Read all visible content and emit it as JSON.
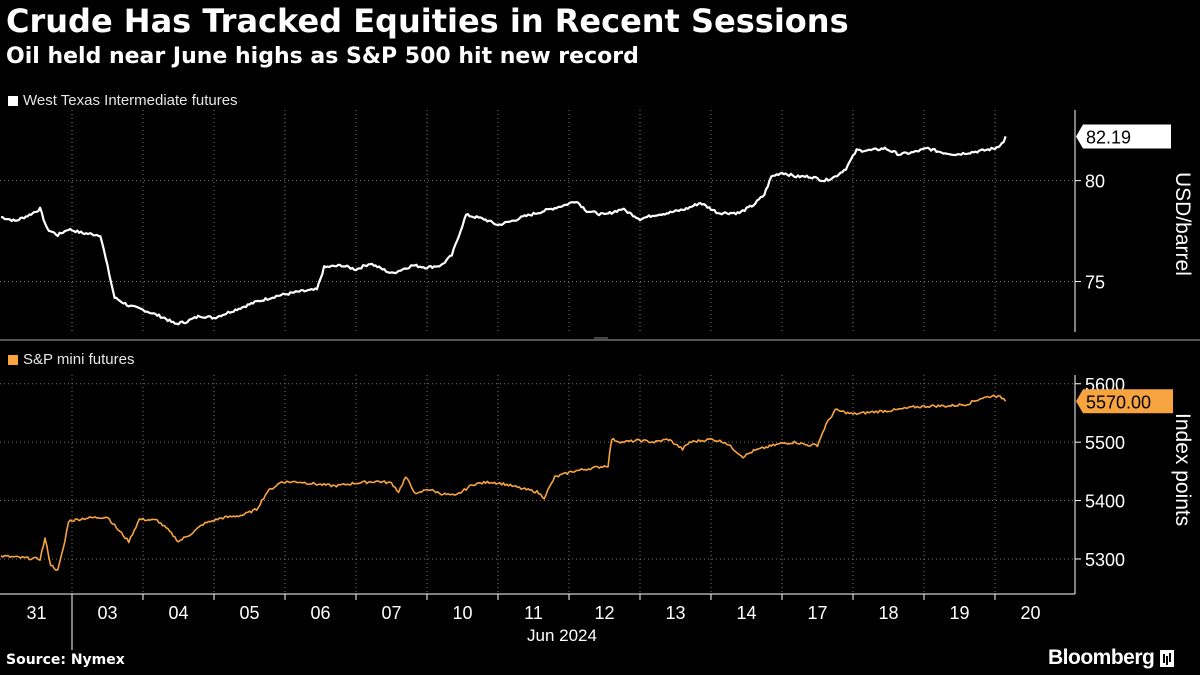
{
  "header": {
    "title": "Crude Has Tracked Equities in Recent Sessions",
    "subtitle": "Oil held near June highs as S&P 500 hit new record"
  },
  "footer": {
    "source": "Source: Nymex",
    "brand": "Bloomberg"
  },
  "colors": {
    "oil": "#ffffff",
    "spx": "#f7a340",
    "grid": "#7a7a7a",
    "background": "#000000"
  },
  "chart_data": [
    {
      "type": "line",
      "name": "oil-panel",
      "legend": "West Texas Intermediate futures",
      "ylabel": "USD/barrel",
      "yticks": [
        75,
        80
      ],
      "ylim": [
        72.5,
        83.5
      ],
      "last_value_label": "82.19",
      "series": [
        {
          "name": "West Texas Intermediate futures",
          "points": [
            [
              0.0,
              78.2
            ],
            [
              0.2,
              78.0
            ],
            [
              0.4,
              78.3
            ],
            [
              0.55,
              78.6
            ],
            [
              0.65,
              77.6
            ],
            [
              0.8,
              77.3
            ],
            [
              0.95,
              77.6
            ],
            [
              1.15,
              77.4
            ],
            [
              1.4,
              77.3
            ],
            [
              1.6,
              74.2
            ],
            [
              1.8,
              73.8
            ],
            [
              2.0,
              73.6
            ],
            [
              2.3,
              73.2
            ],
            [
              2.45,
              72.9
            ],
            [
              2.6,
              73.0
            ],
            [
              2.8,
              73.3
            ],
            [
              3.0,
              73.2
            ],
            [
              3.3,
              73.6
            ],
            [
              3.6,
              74.0
            ],
            [
              3.9,
              74.3
            ],
            [
              4.2,
              74.5
            ],
            [
              4.45,
              74.6
            ],
            [
              4.55,
              75.7
            ],
            [
              4.8,
              75.8
            ],
            [
              5.0,
              75.6
            ],
            [
              5.2,
              75.9
            ],
            [
              5.5,
              75.4
            ],
            [
              5.8,
              75.8
            ],
            [
              6.0,
              75.7
            ],
            [
              6.2,
              75.8
            ],
            [
              6.35,
              76.3
            ],
            [
              6.55,
              78.3
            ],
            [
              6.8,
              78.1
            ],
            [
              7.0,
              77.8
            ],
            [
              7.2,
              78.0
            ],
            [
              7.35,
              78.2
            ],
            [
              7.55,
              78.4
            ],
            [
              7.75,
              78.6
            ],
            [
              7.95,
              78.8
            ],
            [
              8.1,
              79.0
            ],
            [
              8.25,
              78.5
            ],
            [
              8.5,
              78.3
            ],
            [
              8.75,
              78.6
            ],
            [
              9.0,
              78.1
            ],
            [
              9.2,
              78.3
            ],
            [
              9.4,
              78.4
            ],
            [
              9.65,
              78.6
            ],
            [
              9.85,
              78.9
            ],
            [
              10.1,
              78.4
            ],
            [
              10.4,
              78.4
            ],
            [
              10.6,
              78.8
            ],
            [
              10.75,
              79.3
            ],
            [
              10.85,
              80.2
            ],
            [
              11.0,
              80.4
            ],
            [
              11.2,
              80.2
            ],
            [
              11.4,
              80.2
            ],
            [
              11.6,
              80.0
            ],
            [
              11.75,
              80.2
            ],
            [
              11.9,
              80.6
            ],
            [
              12.05,
              81.5
            ],
            [
              12.25,
              81.5
            ],
            [
              12.45,
              81.6
            ],
            [
              12.65,
              81.3
            ],
            [
              12.85,
              81.4
            ],
            [
              13.05,
              81.6
            ],
            [
              13.25,
              81.4
            ],
            [
              13.45,
              81.3
            ],
            [
              13.65,
              81.4
            ],
            [
              13.85,
              81.5
            ],
            [
              14.0,
              81.6
            ],
            [
              14.12,
              81.9
            ],
            [
              14.15,
              82.19
            ]
          ]
        }
      ]
    },
    {
      "type": "line",
      "name": "spx-panel",
      "legend": "S&P mini futures",
      "ylabel": "Index points",
      "yticks": [
        5300,
        5400,
        5500,
        5600
      ],
      "ylim": [
        5240,
        5615
      ],
      "last_value_label": "5570.00",
      "series": [
        {
          "name": "S&P mini futures",
          "points": [
            [
              0.0,
              5305
            ],
            [
              0.3,
              5302
            ],
            [
              0.55,
              5300
            ],
            [
              0.62,
              5335
            ],
            [
              0.7,
              5290
            ],
            [
              0.8,
              5280
            ],
            [
              0.9,
              5330
            ],
            [
              0.95,
              5365
            ],
            [
              1.2,
              5370
            ],
            [
              1.5,
              5372
            ],
            [
              1.65,
              5350
            ],
            [
              1.8,
              5330
            ],
            [
              1.95,
              5368
            ],
            [
              2.2,
              5366
            ],
            [
              2.35,
              5350
            ],
            [
              2.5,
              5330
            ],
            [
              2.7,
              5345
            ],
            [
              2.85,
              5360
            ],
            [
              3.1,
              5370
            ],
            [
              3.4,
              5375
            ],
            [
              3.6,
              5385
            ],
            [
              3.75,
              5415
            ],
            [
              3.95,
              5432
            ],
            [
              4.2,
              5432
            ],
            [
              4.45,
              5428
            ],
            [
              4.7,
              5425
            ],
            [
              5.0,
              5430
            ],
            [
              5.3,
              5433
            ],
            [
              5.5,
              5430
            ],
            [
              5.6,
              5415
            ],
            [
              5.7,
              5440
            ],
            [
              5.85,
              5410
            ],
            [
              6.0,
              5420
            ],
            [
              6.2,
              5412
            ],
            [
              6.4,
              5408
            ],
            [
              6.65,
              5428
            ],
            [
              6.9,
              5432
            ],
            [
              7.1,
              5428
            ],
            [
              7.35,
              5420
            ],
            [
              7.55,
              5415
            ],
            [
              7.65,
              5405
            ],
            [
              7.8,
              5440
            ],
            [
              8.05,
              5450
            ],
            [
              8.3,
              5455
            ],
            [
              8.55,
              5460
            ],
            [
              8.6,
              5505
            ],
            [
              8.75,
              5500
            ],
            [
              9.0,
              5503
            ],
            [
              9.2,
              5500
            ],
            [
              9.4,
              5505
            ],
            [
              9.6,
              5488
            ],
            [
              9.7,
              5500
            ],
            [
              10.0,
              5505
            ],
            [
              10.2,
              5500
            ],
            [
              10.35,
              5485
            ],
            [
              10.45,
              5475
            ],
            [
              10.6,
              5485
            ],
            [
              10.8,
              5492
            ],
            [
              11.0,
              5498
            ],
            [
              11.2,
              5500
            ],
            [
              11.35,
              5495
            ],
            [
              11.5,
              5495
            ],
            [
              11.62,
              5530
            ],
            [
              11.75,
              5555
            ],
            [
              12.0,
              5548
            ],
            [
              12.3,
              5552
            ],
            [
              12.6,
              5555
            ],
            [
              12.85,
              5560
            ],
            [
              13.1,
              5562
            ],
            [
              13.35,
              5562
            ],
            [
              13.6,
              5565
            ],
            [
              13.8,
              5575
            ],
            [
              14.0,
              5580
            ],
            [
              14.12,
              5575
            ],
            [
              14.15,
              5570
            ]
          ]
        }
      ]
    }
  ],
  "x_axis": {
    "ticks": [
      "31",
      "03",
      "04",
      "05",
      "06",
      "07",
      "10",
      "11",
      "12",
      "13",
      "14",
      "17",
      "18",
      "19",
      "20"
    ],
    "month_label": "Jun 2024"
  }
}
